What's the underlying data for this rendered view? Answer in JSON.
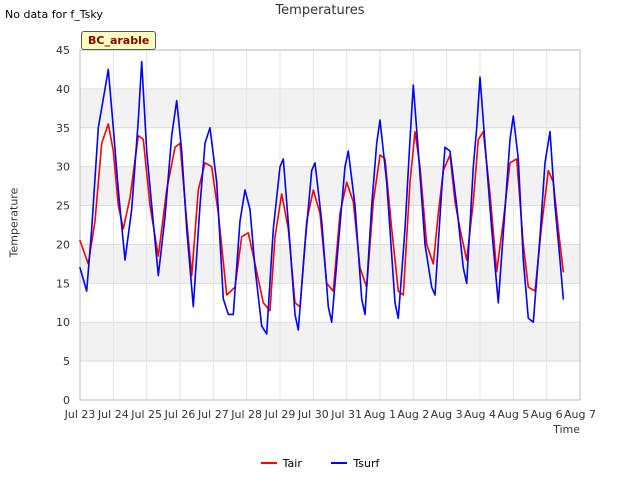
{
  "note": "No data for f_Tsky",
  "chart_data": {
    "type": "line",
    "title": "Temperatures",
    "site": "BC_arable",
    "xlabel": "Time",
    "ylabel": "Temperature",
    "xlim": [
      0,
      15
    ],
    "ylim": [
      0,
      45
    ],
    "x_ticks": [
      0,
      1,
      2,
      3,
      4,
      5,
      6,
      7,
      8,
      9,
      10,
      11,
      12,
      13,
      14,
      15
    ],
    "x_tick_labels": [
      "Jul 23",
      "Jul 24",
      "Jul 25",
      "Jul 26",
      "Jul 27",
      "Jul 28",
      "Jul 29",
      "Jul 30",
      "Jul 31",
      "Aug 1",
      "Aug 2",
      "Aug 3",
      "Aug 4",
      "Aug 5",
      "Aug 6",
      "Aug 7"
    ],
    "y_ticks": [
      0,
      5,
      10,
      15,
      20,
      25,
      30,
      35,
      40,
      45
    ],
    "grid": true,
    "legend_position": "bottom-center",
    "series": [
      {
        "name": "Tair",
        "color": "#ff0000",
        "points": [
          [
            0.0,
            20.5
          ],
          [
            0.25,
            17.5
          ],
          [
            0.45,
            23.0
          ],
          [
            0.65,
            33.0
          ],
          [
            0.85,
            35.5
          ],
          [
            1.0,
            32.0
          ],
          [
            1.15,
            25.0
          ],
          [
            1.3,
            22.0
          ],
          [
            1.5,
            26.0
          ],
          [
            1.75,
            34.0
          ],
          [
            1.9,
            33.5
          ],
          [
            2.1,
            25.0
          ],
          [
            2.35,
            18.5
          ],
          [
            2.6,
            27.0
          ],
          [
            2.85,
            32.5
          ],
          [
            3.0,
            33.0
          ],
          [
            3.15,
            25.5
          ],
          [
            3.35,
            16.0
          ],
          [
            3.55,
            27.0
          ],
          [
            3.75,
            30.5
          ],
          [
            3.95,
            30.0
          ],
          [
            4.15,
            24.0
          ],
          [
            4.4,
            13.5
          ],
          [
            4.65,
            14.5
          ],
          [
            4.85,
            21.0
          ],
          [
            5.05,
            21.5
          ],
          [
            5.25,
            17.5
          ],
          [
            5.5,
            12.5
          ],
          [
            5.7,
            11.5
          ],
          [
            5.85,
            21.0
          ],
          [
            6.05,
            26.5
          ],
          [
            6.25,
            22.0
          ],
          [
            6.45,
            12.5
          ],
          [
            6.6,
            12.0
          ],
          [
            6.8,
            23.0
          ],
          [
            7.0,
            27.0
          ],
          [
            7.2,
            24.0
          ],
          [
            7.4,
            15.0
          ],
          [
            7.6,
            14.0
          ],
          [
            7.8,
            24.0
          ],
          [
            8.0,
            28.0
          ],
          [
            8.2,
            25.5
          ],
          [
            8.4,
            17.0
          ],
          [
            8.6,
            14.5
          ],
          [
            8.8,
            25.5
          ],
          [
            9.0,
            31.5
          ],
          [
            9.15,
            31.0
          ],
          [
            9.35,
            22.0
          ],
          [
            9.55,
            14.0
          ],
          [
            9.7,
            13.5
          ],
          [
            9.9,
            28.0
          ],
          [
            10.05,
            34.5
          ],
          [
            10.2,
            30.0
          ],
          [
            10.4,
            20.0
          ],
          [
            10.6,
            17.5
          ],
          [
            10.75,
            24.0
          ],
          [
            10.9,
            29.5
          ],
          [
            11.1,
            31.5
          ],
          [
            11.25,
            25.5
          ],
          [
            11.4,
            22.0
          ],
          [
            11.6,
            18.0
          ],
          [
            11.8,
            25.5
          ],
          [
            11.95,
            33.5
          ],
          [
            12.1,
            34.5
          ],
          [
            12.3,
            26.5
          ],
          [
            12.5,
            16.5
          ],
          [
            12.7,
            23.0
          ],
          [
            12.9,
            30.5
          ],
          [
            13.1,
            31.0
          ],
          [
            13.3,
            20.0
          ],
          [
            13.45,
            14.5
          ],
          [
            13.65,
            14.0
          ],
          [
            13.85,
            22.5
          ],
          [
            14.05,
            29.5
          ],
          [
            14.2,
            28.0
          ],
          [
            14.35,
            22.0
          ],
          [
            14.5,
            16.5
          ]
        ]
      },
      {
        "name": "Tsurf",
        "color": "#0000ff",
        "points": [
          [
            0.0,
            17.0
          ],
          [
            0.2,
            14.0
          ],
          [
            0.35,
            22.0
          ],
          [
            0.55,
            35.0
          ],
          [
            0.75,
            40.0
          ],
          [
            0.85,
            42.5
          ],
          [
            1.0,
            35.0
          ],
          [
            1.15,
            27.0
          ],
          [
            1.35,
            18.0
          ],
          [
            1.55,
            24.5
          ],
          [
            1.75,
            36.0
          ],
          [
            1.85,
            43.5
          ],
          [
            2.0,
            32.0
          ],
          [
            2.15,
            25.0
          ],
          [
            2.35,
            16.0
          ],
          [
            2.55,
            23.5
          ],
          [
            2.75,
            34.0
          ],
          [
            2.9,
            38.5
          ],
          [
            3.05,
            32.0
          ],
          [
            3.2,
            22.0
          ],
          [
            3.4,
            12.0
          ],
          [
            3.6,
            25.0
          ],
          [
            3.75,
            33.0
          ],
          [
            3.9,
            35.0
          ],
          [
            4.1,
            28.0
          ],
          [
            4.3,
            13.0
          ],
          [
            4.45,
            11.0
          ],
          [
            4.6,
            11.0
          ],
          [
            4.8,
            23.0
          ],
          [
            4.95,
            27.0
          ],
          [
            5.1,
            24.5
          ],
          [
            5.25,
            17.0
          ],
          [
            5.45,
            9.5
          ],
          [
            5.6,
            8.5
          ],
          [
            5.8,
            22.0
          ],
          [
            6.0,
            30.0
          ],
          [
            6.1,
            31.0
          ],
          [
            6.3,
            20.0
          ],
          [
            6.45,
            11.0
          ],
          [
            6.55,
            9.0
          ],
          [
            6.75,
            20.0
          ],
          [
            6.95,
            29.5
          ],
          [
            7.05,
            30.5
          ],
          [
            7.25,
            23.0
          ],
          [
            7.45,
            12.0
          ],
          [
            7.55,
            10.0
          ],
          [
            7.75,
            20.0
          ],
          [
            7.95,
            30.0
          ],
          [
            8.05,
            32.0
          ],
          [
            8.25,
            25.0
          ],
          [
            8.45,
            13.0
          ],
          [
            8.55,
            11.0
          ],
          [
            8.75,
            25.0
          ],
          [
            8.9,
            33.0
          ],
          [
            9.0,
            36.0
          ],
          [
            9.2,
            28.0
          ],
          [
            9.45,
            12.5
          ],
          [
            9.55,
            10.5
          ],
          [
            9.75,
            22.0
          ],
          [
            9.9,
            33.5
          ],
          [
            10.0,
            40.5
          ],
          [
            10.15,
            32.0
          ],
          [
            10.35,
            20.0
          ],
          [
            10.55,
            14.5
          ],
          [
            10.65,
            13.5
          ],
          [
            10.85,
            27.0
          ],
          [
            10.95,
            32.5
          ],
          [
            11.1,
            32.0
          ],
          [
            11.3,
            25.0
          ],
          [
            11.5,
            17.0
          ],
          [
            11.6,
            15.0
          ],
          [
            11.8,
            30.0
          ],
          [
            11.9,
            35.0
          ],
          [
            12.0,
            41.5
          ],
          [
            12.15,
            33.0
          ],
          [
            12.35,
            22.0
          ],
          [
            12.55,
            12.5
          ],
          [
            12.75,
            24.5
          ],
          [
            12.9,
            33.5
          ],
          [
            13.0,
            36.5
          ],
          [
            13.15,
            31.0
          ],
          [
            13.3,
            18.0
          ],
          [
            13.45,
            10.5
          ],
          [
            13.6,
            10.0
          ],
          [
            13.8,
            21.0
          ],
          [
            13.95,
            30.5
          ],
          [
            14.1,
            34.5
          ],
          [
            14.25,
            25.0
          ],
          [
            14.4,
            18.0
          ],
          [
            14.5,
            13.0
          ]
        ]
      }
    ]
  }
}
